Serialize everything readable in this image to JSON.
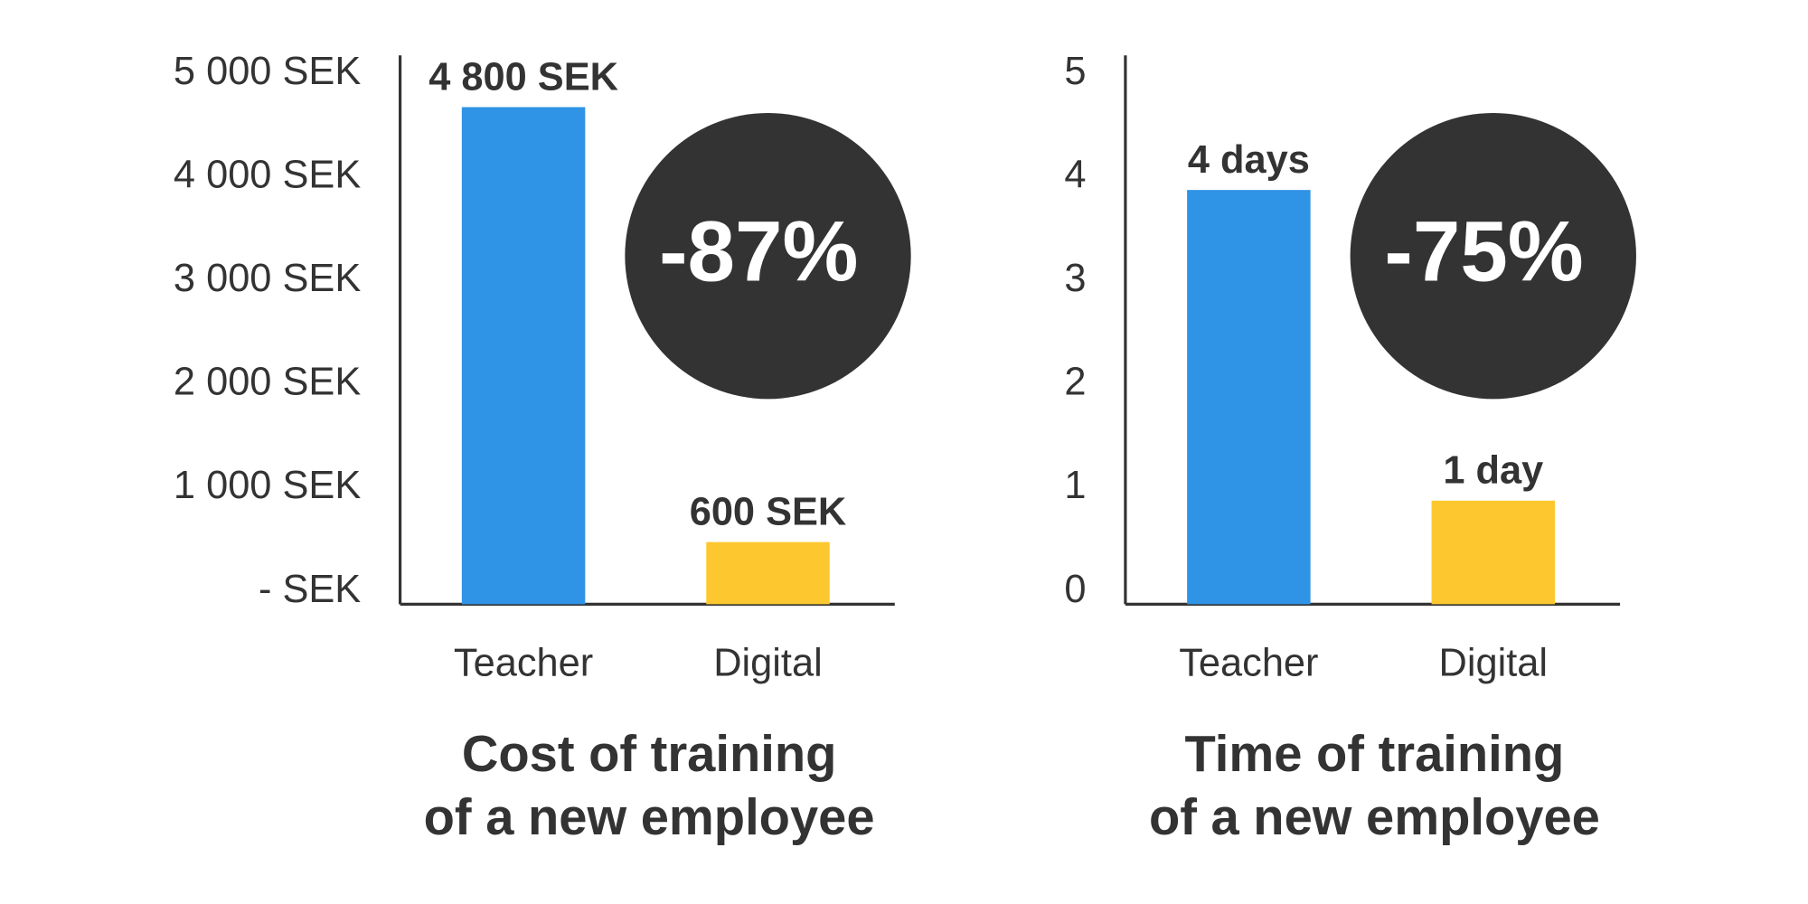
{
  "chart_data": [
    {
      "type": "bar",
      "title": [
        "Cost of training",
        "of a new employee"
      ],
      "categories": [
        "Teacher",
        "Digital"
      ],
      "values": [
        4800,
        600
      ],
      "value_labels": [
        "4 800 SEK",
        "600 SEK"
      ],
      "colors": [
        "#2f93e6",
        "#fdc82f"
      ],
      "annotation": "-87%",
      "ylim": [
        0,
        5300
      ],
      "yticks": [
        {
          "value": 0,
          "label": "- SEK"
        },
        {
          "value": 1000,
          "label": "1 000 SEK"
        },
        {
          "value": 2000,
          "label": "2 000 SEK"
        },
        {
          "value": 3000,
          "label": "3 000 SEK"
        },
        {
          "value": 4000,
          "label": "4 000 SEK"
        },
        {
          "value": 5000,
          "label": "5 000 SEK"
        }
      ]
    },
    {
      "type": "bar",
      "title": [
        "Time of training",
        "of a new employee"
      ],
      "categories": [
        "Teacher",
        "Digital"
      ],
      "values": [
        4,
        1
      ],
      "value_labels": [
        "4 days",
        "1 day"
      ],
      "colors": [
        "#2f93e6",
        "#fdc82f"
      ],
      "annotation": "-75%",
      "ylim": [
        0,
        5.3
      ],
      "yticks": [
        0,
        1,
        2,
        3,
        4,
        5
      ]
    }
  ]
}
